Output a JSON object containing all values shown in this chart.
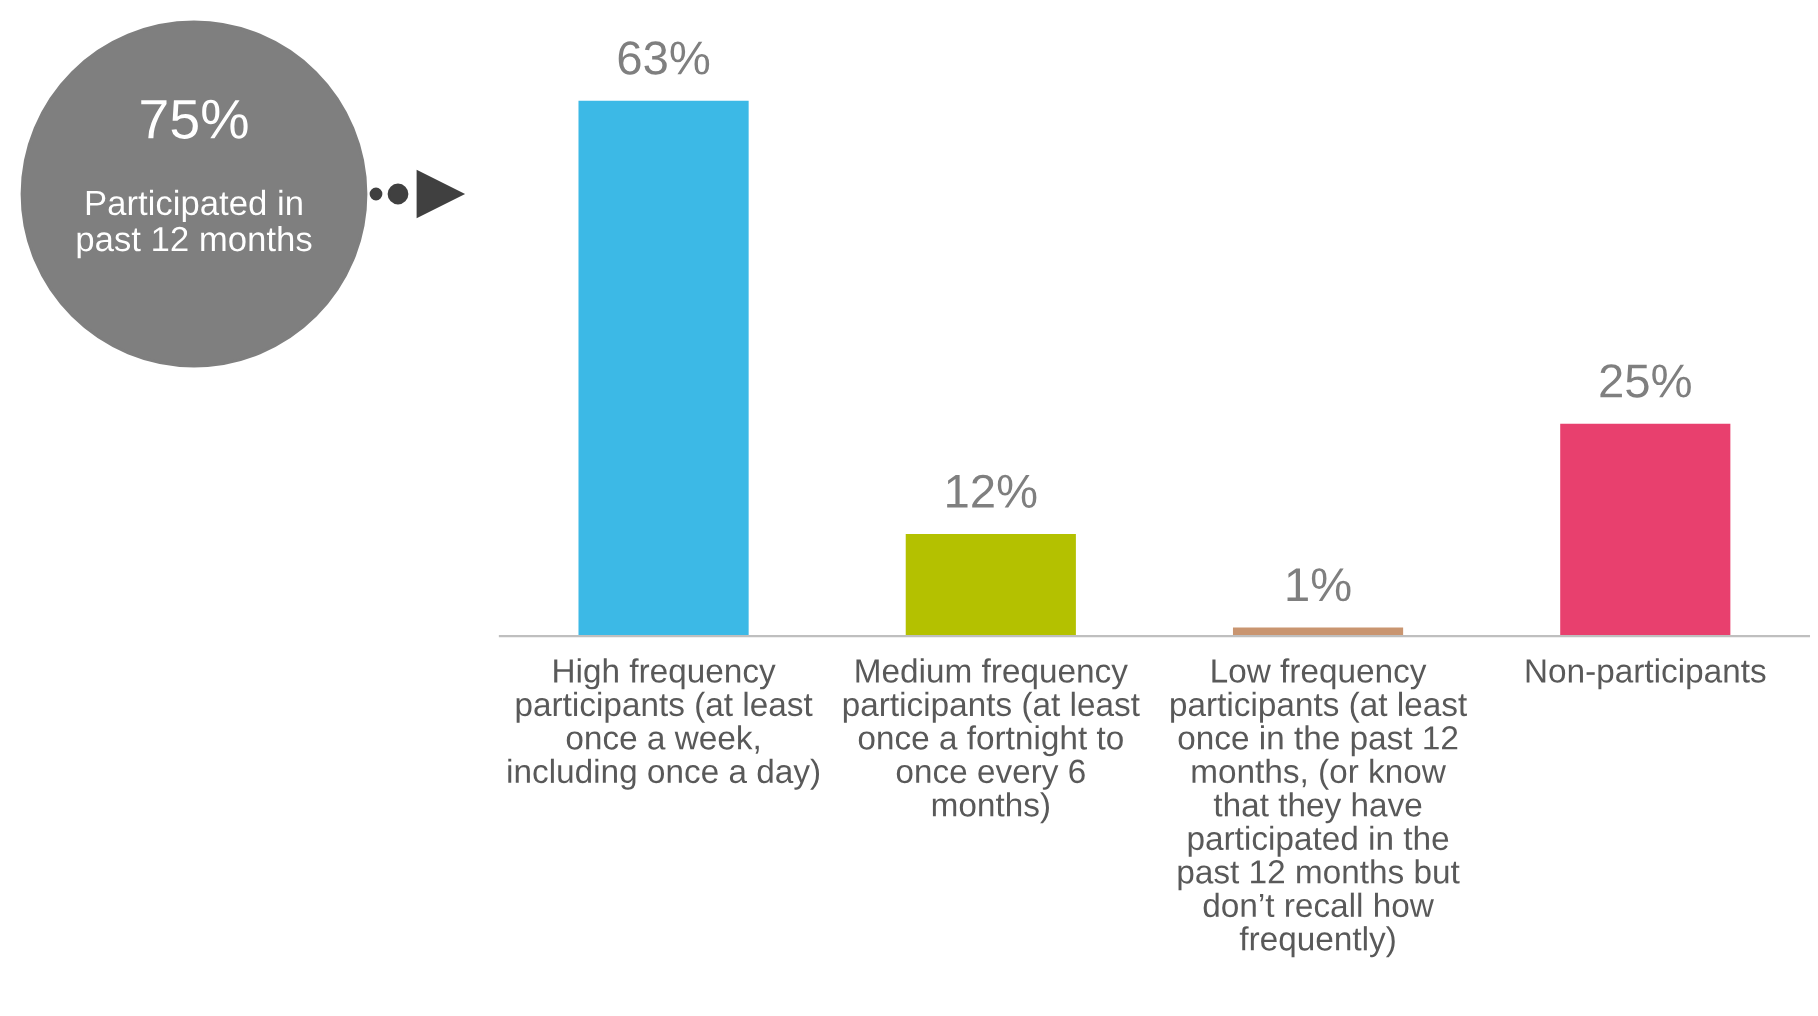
{
  "chart_data": {
    "type": "bar",
    "categories": [
      "High frequency participants (at least once a week, including once a day)",
      "Medium frequency participants (at least once a fortnight to once every 6 months)",
      "Low frequency participants (at least once in the past 12 months, (or know that they have participated in the past 12 months but don’t recall how frequently)",
      "Non-participants"
    ],
    "values": [
      63,
      12,
      1,
      25
    ],
    "colors": [
      "#3cb9e6",
      "#b4c100",
      "#c99570",
      "#e8406e"
    ],
    "value_labels": [
      "63%",
      "12%",
      "1%",
      "25%"
    ],
    "annotations": [
      "75%",
      "Participated in past 12 months"
    ]
  }
}
